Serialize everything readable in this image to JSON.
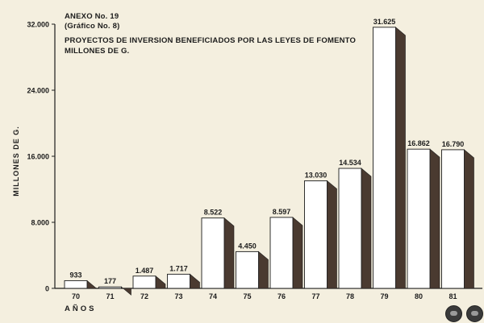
{
  "header": {
    "anexo": "ANEXO No. 19",
    "grafico": "(Gráfico No. 8)",
    "title_line1": "PROYECTOS DE INVERSION BENEFICIADOS POR LAS LEYES DE FOMENTO",
    "title_line2": "MILLONES DE G."
  },
  "chart_data": {
    "type": "bar",
    "title": "PROYECTOS DE INVERSION BENEFICIADOS POR LAS LEYES DE FOMENTO",
    "subtitle": "MILLONES DE G.",
    "xlabel": "AÑOS",
    "ylabel": "MILLONES DE G.",
    "categories": [
      "70",
      "71",
      "72",
      "73",
      "74",
      "75",
      "76",
      "77",
      "78",
      "79",
      "80",
      "81"
    ],
    "values": [
      933,
      177,
      1487,
      1717,
      8522,
      4450,
      8597,
      13030,
      14534,
      31625,
      16862,
      16790
    ],
    "value_labels": [
      "933",
      "177",
      "1.487",
      "1.717",
      "8.522",
      "4.450",
      "8.597",
      "13.030",
      "14.534",
      "31.625",
      "16.862",
      "16.790"
    ],
    "yticks": [
      0,
      8000,
      16000,
      24000,
      32000
    ],
    "ytick_labels": [
      "0",
      "8.000",
      "16.000",
      "24.000",
      "32.000"
    ],
    "ylim": [
      0,
      32000
    ],
    "grid": false,
    "legend": "none",
    "colors": {
      "bar_face": "#ffffff",
      "bar_shadow": "#4a3a30",
      "axis": "#1c1c1c",
      "background": "#f4efdf"
    }
  }
}
